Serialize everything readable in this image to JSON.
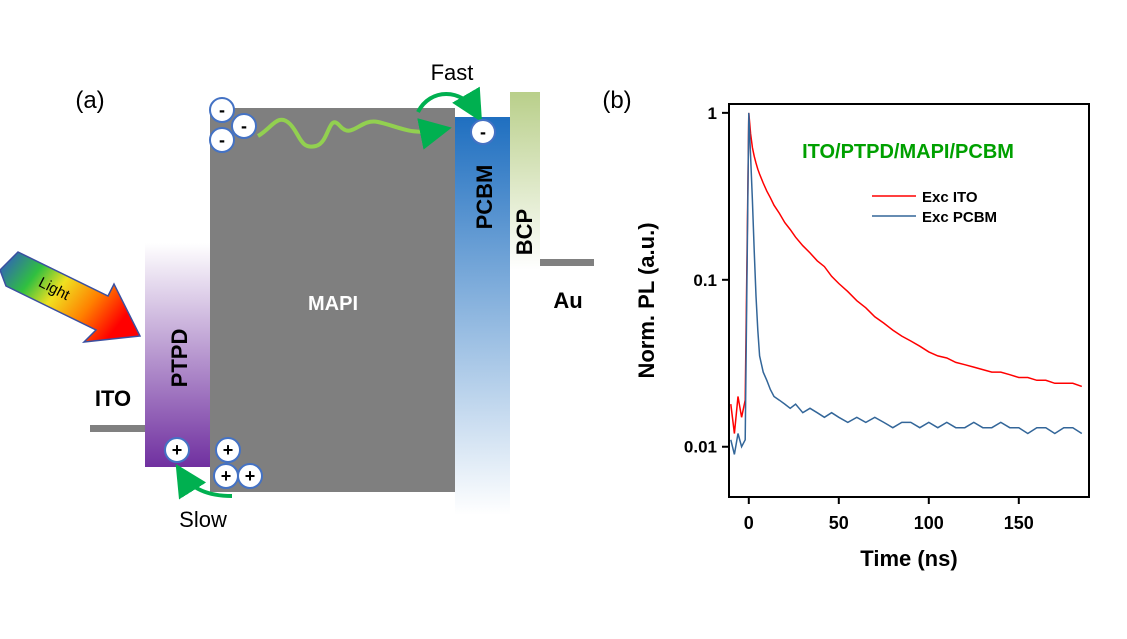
{
  "diagram": {
    "panel_label": "(a)",
    "fast": "Fast",
    "slow": "Slow",
    "light": "Light",
    "ito": "ITO",
    "ptpd": "PTPD",
    "mapi": "MAPI",
    "pcbm": "PCBM",
    "bcp": "BCP",
    "au": "Au",
    "electron": "-",
    "hole": "+"
  },
  "chart_data": {
    "type": "line",
    "panel_label": "(b)",
    "title": "ITO/PTPD/MAPI/PCBM",
    "xlabel": "Time (ns)",
    "ylabel": "Norm. PL (a.u.)",
    "yscale": "log",
    "title_color": "#00a000",
    "x": [
      -10,
      -8,
      -6,
      -4,
      -2,
      0,
      1,
      2,
      3,
      4,
      5,
      6,
      8,
      10,
      12,
      14,
      17,
      20,
      23,
      26,
      30,
      34,
      38,
      42,
      46,
      50,
      55,
      60,
      65,
      70,
      75,
      80,
      85,
      90,
      95,
      100,
      105,
      110,
      115,
      120,
      125,
      130,
      135,
      140,
      145,
      150,
      155,
      160,
      165,
      170,
      175,
      180,
      185
    ],
    "series": [
      {
        "name": "Exc ITO",
        "color": "#ff0000",
        "values": [
          0.018,
          0.012,
          0.02,
          0.015,
          0.019,
          1,
          0.75,
          0.62,
          0.55,
          0.5,
          0.46,
          0.43,
          0.38,
          0.34,
          0.31,
          0.28,
          0.25,
          0.22,
          0.2,
          0.18,
          0.16,
          0.145,
          0.13,
          0.12,
          0.105,
          0.095,
          0.085,
          0.075,
          0.068,
          0.06,
          0.055,
          0.05,
          0.046,
          0.043,
          0.04,
          0.037,
          0.035,
          0.034,
          0.032,
          0.031,
          0.03,
          0.029,
          0.028,
          0.028,
          0.027,
          0.026,
          0.026,
          0.025,
          0.025,
          0.024,
          0.024,
          0.024,
          0.023
        ]
      },
      {
        "name": "Exc PCBM",
        "color": "#336699",
        "values": [
          0.011,
          0.009,
          0.012,
          0.01,
          0.011,
          1,
          0.55,
          0.3,
          0.15,
          0.08,
          0.05,
          0.035,
          0.028,
          0.025,
          0.022,
          0.02,
          0.019,
          0.018,
          0.017,
          0.018,
          0.016,
          0.017,
          0.016,
          0.015,
          0.016,
          0.015,
          0.014,
          0.015,
          0.014,
          0.015,
          0.014,
          0.013,
          0.014,
          0.014,
          0.013,
          0.014,
          0.013,
          0.014,
          0.013,
          0.013,
          0.014,
          0.013,
          0.013,
          0.014,
          0.013,
          0.013,
          0.012,
          0.013,
          0.013,
          0.012,
          0.013,
          0.013,
          0.012
        ]
      }
    ],
    "xlim": [
      -11,
      189
    ],
    "ylim": [
      0.005,
      1.13
    ],
    "xticks": [
      0,
      50,
      100,
      150
    ],
    "yticks": [
      1,
      0.1,
      0.01
    ]
  }
}
